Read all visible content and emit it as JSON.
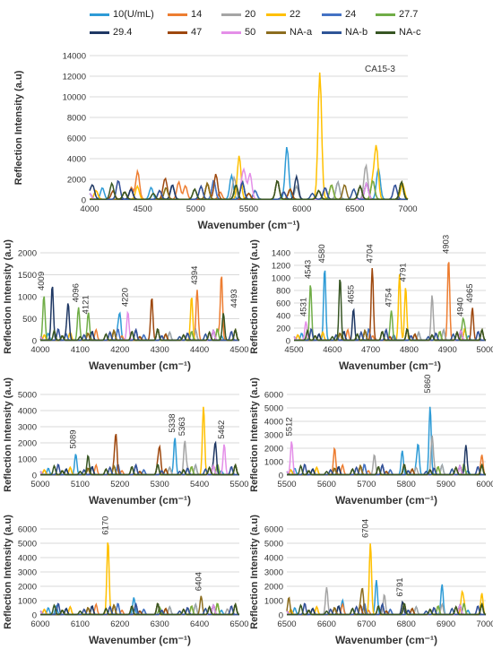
{
  "legend": [
    {
      "name": "10(U/mL)",
      "color": "#2E9BD6"
    },
    {
      "name": "14",
      "color": "#ED7D31"
    },
    {
      "name": "20",
      "color": "#A5A5A5"
    },
    {
      "name": "22",
      "color": "#FFC000"
    },
    {
      "name": "24",
      "color": "#4472C4"
    },
    {
      "name": "27.7",
      "color": "#70AD47"
    },
    {
      "name": "29.4",
      "color": "#1F3864"
    },
    {
      "name": "47",
      "color": "#9E480E"
    },
    {
      "name": "50",
      "color": "#E48FE8"
    },
    {
      "name": "NA-a",
      "color": "#8C6D1F"
    },
    {
      "name": "NA-b",
      "color": "#2F5597"
    },
    {
      "name": "NA-c",
      "color": "#375623"
    }
  ],
  "chart_data": [
    {
      "type": "line",
      "annotation_label": "CA15-3",
      "xlabel": "Wavenumber (cm⁻¹)",
      "ylabel": "Reflection Intensity (a.u)",
      "xlim": [
        4000,
        7000
      ],
      "ylim": [
        0,
        14000
      ],
      "xticks": [
        "4000",
        "4500",
        "5000",
        "5500",
        "6000",
        "6500",
        "7000"
      ],
      "yticks": [
        "0",
        "2000",
        "4000",
        "6000",
        "8000",
        "10000",
        "12000",
        "14000"
      ],
      "grid": true,
      "peaks": [
        {
          "x": 4030,
          "y": 1260,
          "series": "29.4"
        },
        {
          "x": 4220,
          "y": 800,
          "series": "47"
        },
        {
          "x": 4394,
          "y": 1150,
          "series": "14"
        },
        {
          "x": 4455,
          "y": 1500,
          "series": "14"
        },
        {
          "x": 4580,
          "y": 1150,
          "series": "10(U/mL)"
        },
        {
          "x": 4704,
          "y": 1150,
          "series": "47"
        },
        {
          "x": 4903,
          "y": 1300,
          "series": "14"
        },
        {
          "x": 5190,
          "y": 2450,
          "series": "47"
        },
        {
          "x": 5338,
          "y": 2300,
          "series": "10(U/mL)"
        },
        {
          "x": 5363,
          "y": 2100,
          "series": "20"
        },
        {
          "x": 5410,
          "y": 4250,
          "series": "22"
        },
        {
          "x": 5462,
          "y": 1900,
          "series": "50"
        },
        {
          "x": 5512,
          "y": 2500,
          "series": "50"
        },
        {
          "x": 5860,
          "y": 5100,
          "series": "10(U/mL)"
        },
        {
          "x": 5950,
          "y": 2200,
          "series": "29.4"
        },
        {
          "x": 6170,
          "y": 12300,
          "series": "22"
        },
        {
          "x": 6404,
          "y": 1400,
          "series": "NA-a"
        },
        {
          "x": 6600,
          "y": 1900,
          "series": "20"
        },
        {
          "x": 6704,
          "y": 5000,
          "series": "22"
        },
        {
          "x": 6720,
          "y": 2400,
          "series": "10(U/mL)"
        },
        {
          "x": 6950,
          "y": 1500,
          "series": "22"
        }
      ]
    },
    {
      "type": "line",
      "xlabel": "Wavenumber (cm⁻¹)",
      "ylabel": "Reflection Intensity (a.u)",
      "xlim": [
        4000,
        4500
      ],
      "ylim": [
        0,
        2000
      ],
      "xticks": [
        "4000",
        "4100",
        "4200",
        "4300",
        "4400",
        "4500"
      ],
      "yticks": [
        "0",
        "500",
        "1000",
        "1500",
        "2000"
      ],
      "grid": true,
      "annotations": [
        "4009",
        "4096",
        "4121",
        "4220",
        "4394",
        "4493"
      ],
      "peaks": [
        {
          "x": 4009,
          "y": 1020,
          "series": "27.7"
        },
        {
          "x": 4030,
          "y": 1260,
          "series": "29.4"
        },
        {
          "x": 4070,
          "y": 820,
          "series": "29.4"
        },
        {
          "x": 4096,
          "y": 750,
          "series": "27.7"
        },
        {
          "x": 4121,
          "y": 480,
          "series": "27.7"
        },
        {
          "x": 4200,
          "y": 560,
          "series": "10(U/mL)"
        },
        {
          "x": 4220,
          "y": 650,
          "series": "50"
        },
        {
          "x": 4280,
          "y": 980,
          "series": "47"
        },
        {
          "x": 4380,
          "y": 800,
          "series": "22"
        },
        {
          "x": 4394,
          "y": 1150,
          "series": "14"
        },
        {
          "x": 4455,
          "y": 1500,
          "series": "14"
        },
        {
          "x": 4460,
          "y": 620,
          "series": "NA-c"
        }
      ]
    },
    {
      "type": "line",
      "xlabel": "Wavenumber (cm⁻¹)",
      "ylabel": "Reflection Intensity (a.u)",
      "xlim": [
        4500,
        5000
      ],
      "ylim": [
        0,
        1400
      ],
      "xticks": [
        "4500",
        "4600",
        "4700",
        "4800",
        "4900",
        "5000"
      ],
      "yticks": [
        "0",
        "200",
        "400",
        "600",
        "800",
        "1000",
        "1200",
        "1400"
      ],
      "grid": true,
      "annotations": [
        "4531",
        "4543",
        "4580",
        "4655",
        "4704",
        "4754",
        "4791",
        "4903",
        "4940",
        "4965"
      ],
      "peaks": [
        {
          "x": 4531,
          "y": 300,
          "series": "50"
        },
        {
          "x": 4543,
          "y": 900,
          "series": "27.7"
        },
        {
          "x": 4580,
          "y": 1150,
          "series": "10(U/mL)"
        },
        {
          "x": 4620,
          "y": 1000,
          "series": "NA-c"
        },
        {
          "x": 4655,
          "y": 500,
          "series": "29.4"
        },
        {
          "x": 4704,
          "y": 1150,
          "series": "47"
        },
        {
          "x": 4754,
          "y": 450,
          "series": "27.7"
        },
        {
          "x": 4775,
          "y": 1050,
          "series": "22"
        },
        {
          "x": 4791,
          "y": 850,
          "series": "22"
        },
        {
          "x": 4860,
          "y": 720,
          "series": "20"
        },
        {
          "x": 4903,
          "y": 1300,
          "series": "14"
        },
        {
          "x": 4940,
          "y": 300,
          "series": "27.7"
        },
        {
          "x": 4965,
          "y": 520,
          "series": "47"
        }
      ]
    },
    {
      "type": "line",
      "xlabel": "Wavenumber (cm⁻¹)",
      "ylabel": "Reflection Intensity (a.u)",
      "xlim": [
        5000,
        5500
      ],
      "ylim": [
        0,
        5000
      ],
      "xticks": [
        "5000",
        "5100",
        "5200",
        "5300",
        "5400",
        "5500"
      ],
      "yticks": [
        "0",
        "1000",
        "2000",
        "3000",
        "4000",
        "5000"
      ],
      "grid": true,
      "annotations": [
        "5089",
        "5338",
        "5363",
        "5462"
      ],
      "peaks": [
        {
          "x": 5089,
          "y": 1300,
          "series": "10(U/mL)"
        },
        {
          "x": 5120,
          "y": 1200,
          "series": "NA-c"
        },
        {
          "x": 5190,
          "y": 2450,
          "series": "47"
        },
        {
          "x": 5300,
          "y": 1600,
          "series": "47"
        },
        {
          "x": 5338,
          "y": 2300,
          "series": "10(U/mL)"
        },
        {
          "x": 5363,
          "y": 2100,
          "series": "20"
        },
        {
          "x": 5410,
          "y": 4250,
          "series": "22"
        },
        {
          "x": 5440,
          "y": 1900,
          "series": "29.4"
        },
        {
          "x": 5462,
          "y": 1900,
          "series": "50"
        }
      ]
    },
    {
      "type": "line",
      "xlabel": "Wavenumber (cm⁻¹)",
      "ylabel": "Reflection Intensity (a.u)",
      "xlim": [
        5500,
        6000
      ],
      "ylim": [
        0,
        6000
      ],
      "xticks": [
        "5500",
        "5600",
        "5700",
        "5800",
        "5900",
        "6000"
      ],
      "yticks": [
        "0",
        "1000",
        "2000",
        "3000",
        "4000",
        "5000",
        "6000"
      ],
      "grid": true,
      "annotations": [
        "5512",
        "5860"
      ],
      "peaks": [
        {
          "x": 5512,
          "y": 2500,
          "series": "50"
        },
        {
          "x": 5620,
          "y": 2000,
          "series": "14"
        },
        {
          "x": 5720,
          "y": 1500,
          "series": "20"
        },
        {
          "x": 5790,
          "y": 1800,
          "series": "10(U/mL)"
        },
        {
          "x": 5830,
          "y": 2200,
          "series": "10(U/mL)"
        },
        {
          "x": 5860,
          "y": 5100,
          "series": "10(U/mL)"
        },
        {
          "x": 5865,
          "y": 2800,
          "series": "20"
        },
        {
          "x": 5950,
          "y": 2200,
          "series": "29.4"
        },
        {
          "x": 5990,
          "y": 1500,
          "series": "14"
        }
      ]
    },
    {
      "type": "line",
      "xlabel": "Wavenumber (cm⁻¹)",
      "ylabel": "Reflection Intensity (a.u)",
      "xlim": [
        6000,
        6500
      ],
      "ylim": [
        0,
        6000
      ],
      "xticks": [
        "6000",
        "6100",
        "6200",
        "6300",
        "6400",
        "6500"
      ],
      "yticks": [
        "0",
        "1000",
        "2000",
        "3000",
        "4000",
        "5000",
        "6000"
      ],
      "grid": true,
      "annotations": [
        "6170",
        "6404"
      ],
      "peaks": [
        {
          "x": 6040,
          "y": 600,
          "series": "10(U/mL)"
        },
        {
          "x": 6170,
          "y": 5200,
          "series": "22"
        },
        {
          "x": 6235,
          "y": 1200,
          "series": "10(U/mL)"
        },
        {
          "x": 6300,
          "y": 500,
          "series": "27.7"
        },
        {
          "x": 6404,
          "y": 1300,
          "series": "NA-a"
        },
        {
          "x": 6470,
          "y": 400,
          "series": "20"
        }
      ]
    },
    {
      "type": "line",
      "xlabel": "Wavenumber (cm⁻¹)",
      "ylabel": "Reflection Intensity (a.u)",
      "xlim": [
        6500,
        7000
      ],
      "ylim": [
        0,
        6000
      ],
      "xticks": [
        "6500",
        "6600",
        "6700",
        "6800",
        "6900",
        "7000"
      ],
      "yticks": [
        "0",
        "1000",
        "2000",
        "3000",
        "4000",
        "5000",
        "6000"
      ],
      "grid": true,
      "annotations": [
        "6704",
        "6791"
      ],
      "peaks": [
        {
          "x": 6505,
          "y": 1200,
          "series": "NA-a"
        },
        {
          "x": 6600,
          "y": 1900,
          "series": "20"
        },
        {
          "x": 6640,
          "y": 1000,
          "series": "10(U/mL)"
        },
        {
          "x": 6690,
          "y": 1700,
          "series": "NA-a"
        },
        {
          "x": 6710,
          "y": 5000,
          "series": "22"
        },
        {
          "x": 6725,
          "y": 2400,
          "series": "10(U/mL)"
        },
        {
          "x": 6745,
          "y": 1400,
          "series": "20"
        },
        {
          "x": 6791,
          "y": 900,
          "series": "29.4"
        },
        {
          "x": 6890,
          "y": 1400,
          "series": "10(U/mL)"
        },
        {
          "x": 6940,
          "y": 1400,
          "series": "22"
        },
        {
          "x": 6990,
          "y": 1500,
          "series": "22"
        }
      ]
    }
  ]
}
